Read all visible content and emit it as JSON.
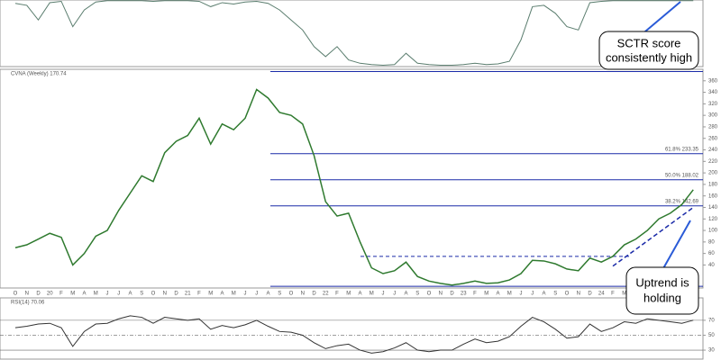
{
  "chart_data": [
    {
      "type": "line",
      "color": "#5a7d6e",
      "ylim": [
        0,
        100
      ],
      "values": [
        95,
        92,
        70,
        96,
        98,
        60,
        85,
        97,
        99,
        99,
        99,
        99,
        98,
        99,
        99,
        99,
        98,
        90,
        96,
        94,
        97,
        98,
        95,
        85,
        70,
        55,
        30,
        15,
        30,
        10,
        5,
        3,
        2,
        3,
        20,
        5,
        3,
        2,
        2,
        3,
        5,
        3,
        4,
        8,
        40,
        90,
        92,
        80,
        60,
        55,
        96,
        98,
        99,
        99,
        99,
        99,
        99,
        99,
        99,
        99
      ]
    },
    {
      "type": "line",
      "title": "CVNA (Weekly) 170.74",
      "color": "#2f7a2f",
      "categories": [
        "O",
        "N",
        "D",
        "20",
        "F",
        "M",
        "A",
        "M",
        "J",
        "J",
        "A",
        "S",
        "O",
        "N",
        "D",
        "21",
        "F",
        "M",
        "A",
        "M",
        "J",
        "J",
        "A",
        "S",
        "O",
        "N",
        "D",
        "22",
        "F",
        "M",
        "A",
        "M",
        "J",
        "J",
        "A",
        "S",
        "O",
        "N",
        "D",
        "23",
        "F",
        "M",
        "A",
        "M",
        "J",
        "J",
        "A",
        "S",
        "O",
        "N",
        "D",
        "24",
        "F",
        "M",
        null,
        null,
        null,
        null,
        null,
        null
      ],
      "values": [
        70,
        75,
        85,
        95,
        88,
        40,
        60,
        90,
        100,
        135,
        165,
        195,
        185,
        235,
        255,
        265,
        295,
        250,
        285,
        275,
        295,
        345,
        330,
        305,
        300,
        285,
        230,
        150,
        125,
        130,
        80,
        35,
        25,
        30,
        45,
        20,
        12,
        8,
        5,
        8,
        12,
        8,
        9,
        14,
        25,
        48,
        47,
        42,
        33,
        30,
        52,
        45,
        55,
        75,
        85,
        100,
        120,
        130,
        145,
        170.74
      ],
      "ylim": [
        0,
        380
      ],
      "yticks": [
        40,
        60,
        80,
        100,
        120,
        140,
        160,
        180,
        200,
        220,
        240,
        260,
        280,
        300,
        320,
        340,
        360
      ],
      "grid": false,
      "levels": [
        {
          "value": 376
        },
        {
          "value": 233.35,
          "label": "61.8% 233.35"
        },
        {
          "value": 188.02,
          "label": "50.0% 188.02"
        },
        {
          "value": 142.69,
          "label": "38.2% 142.69"
        },
        {
          "value": 3
        }
      ],
      "neckline": 55,
      "trendline": [
        [
          52,
          38
        ],
        [
          59,
          140
        ]
      ],
      "annotations": [
        [
          "SCTR score",
          "consistently high"
        ],
        [
          "Uptrend is",
          "holding"
        ]
      ]
    },
    {
      "type": "line",
      "title": "RSI(14) 70.06",
      "color": "#333",
      "values": [
        60,
        62,
        65,
        66,
        60,
        35,
        55,
        65,
        66,
        72,
        76,
        74,
        66,
        74,
        72,
        70,
        72,
        58,
        63,
        60,
        64,
        70,
        62,
        55,
        54,
        50,
        40,
        32,
        36,
        38,
        30,
        26,
        28,
        33,
        40,
        30,
        28,
        30,
        30,
        38,
        45,
        40,
        42,
        48,
        62,
        74,
        68,
        58,
        46,
        48,
        65,
        55,
        60,
        68,
        66,
        72,
        70,
        68,
        66,
        70.06
      ],
      "ylim": [
        18,
        100
      ],
      "yticks": [
        30,
        50,
        70
      ]
    }
  ]
}
